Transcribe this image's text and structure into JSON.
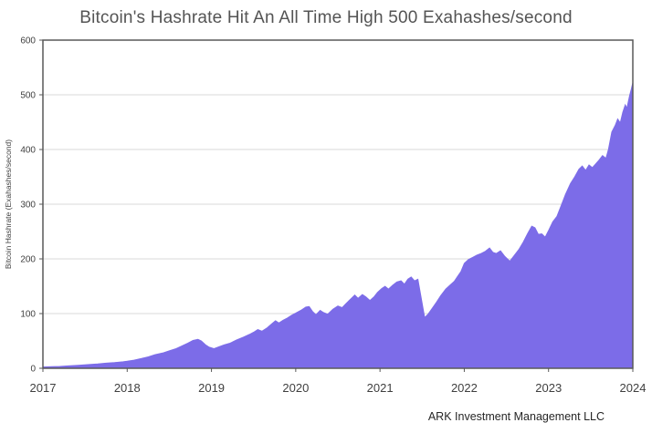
{
  "chart_data": {
    "type": "area",
    "title": "Bitcoin's Hashrate Hit An All Time High 500 Exahashes/second",
    "xlabel": "",
    "ylabel": "Bitcoin Hashrate (Exahashes/second)",
    "attribution": "ARK Investment Management LLC",
    "x_range": [
      2017,
      2024
    ],
    "ylim": [
      0,
      600
    ],
    "yticks": [
      0,
      100,
      200,
      300,
      400,
      500,
      600
    ],
    "xticks": [
      2017,
      2018,
      2019,
      2020,
      2021,
      2022,
      2023,
      2024
    ],
    "grid": "horizontal",
    "legend": "none",
    "colors": {
      "area": "#7c6ce8",
      "border": "#595959",
      "grid": "#d9d9d9",
      "tick_text": "#3f3f3f"
    },
    "series": [
      {
        "name": "Bitcoin Hashrate (Exahashes/second)",
        "points": [
          [
            2017.0,
            2.5
          ],
          [
            2017.1,
            3
          ],
          [
            2017.2,
            3.5
          ],
          [
            2017.3,
            4.5
          ],
          [
            2017.42,
            5.5
          ],
          [
            2017.55,
            7
          ],
          [
            2017.65,
            8
          ],
          [
            2017.75,
            9.5
          ],
          [
            2017.85,
            10.5
          ],
          [
            2017.95,
            12
          ],
          [
            2018.0,
            13
          ],
          [
            2018.08,
            15
          ],
          [
            2018.17,
            18
          ],
          [
            2018.25,
            21
          ],
          [
            2018.33,
            25
          ],
          [
            2018.42,
            28
          ],
          [
            2018.5,
            32
          ],
          [
            2018.58,
            36
          ],
          [
            2018.65,
            41
          ],
          [
            2018.72,
            46
          ],
          [
            2018.78,
            51
          ],
          [
            2018.84,
            53
          ],
          [
            2018.88,
            50
          ],
          [
            2018.93,
            43
          ],
          [
            2018.97,
            39
          ],
          [
            2019.03,
            36
          ],
          [
            2019.08,
            39
          ],
          [
            2019.15,
            43
          ],
          [
            2019.22,
            46
          ],
          [
            2019.3,
            52
          ],
          [
            2019.38,
            57
          ],
          [
            2019.45,
            62
          ],
          [
            2019.5,
            66
          ],
          [
            2019.55,
            71
          ],
          [
            2019.6,
            68
          ],
          [
            2019.66,
            74
          ],
          [
            2019.72,
            82
          ],
          [
            2019.76,
            87
          ],
          [
            2019.8,
            83
          ],
          [
            2019.85,
            88
          ],
          [
            2019.9,
            92
          ],
          [
            2019.95,
            97
          ],
          [
            2020.0,
            101
          ],
          [
            2020.06,
            106
          ],
          [
            2020.12,
            112
          ],
          [
            2020.16,
            113
          ],
          [
            2020.2,
            104
          ],
          [
            2020.24,
            98
          ],
          [
            2020.29,
            106
          ],
          [
            2020.33,
            102
          ],
          [
            2020.38,
            99
          ],
          [
            2020.44,
            108
          ],
          [
            2020.5,
            114
          ],
          [
            2020.55,
            111
          ],
          [
            2020.6,
            119
          ],
          [
            2020.66,
            128
          ],
          [
            2020.7,
            134
          ],
          [
            2020.74,
            128
          ],
          [
            2020.79,
            135
          ],
          [
            2020.83,
            131
          ],
          [
            2020.88,
            124
          ],
          [
            2020.93,
            131
          ],
          [
            2020.97,
            139
          ],
          [
            2021.02,
            146
          ],
          [
            2021.06,
            150
          ],
          [
            2021.1,
            145
          ],
          [
            2021.15,
            152
          ],
          [
            2021.2,
            158
          ],
          [
            2021.25,
            160
          ],
          [
            2021.29,
            154
          ],
          [
            2021.33,
            163
          ],
          [
            2021.37,
            167
          ],
          [
            2021.41,
            160
          ],
          [
            2021.45,
            163
          ],
          [
            2021.49,
            128
          ],
          [
            2021.53,
            93
          ],
          [
            2021.57,
            99
          ],
          [
            2021.62,
            110
          ],
          [
            2021.67,
            121
          ],
          [
            2021.72,
            133
          ],
          [
            2021.78,
            145
          ],
          [
            2021.83,
            152
          ],
          [
            2021.88,
            159
          ],
          [
            2021.92,
            168
          ],
          [
            2021.96,
            177
          ],
          [
            2022.0,
            192
          ],
          [
            2022.05,
            199
          ],
          [
            2022.1,
            203
          ],
          [
            2022.15,
            207
          ],
          [
            2022.2,
            210
          ],
          [
            2022.25,
            214
          ],
          [
            2022.3,
            220
          ],
          [
            2022.34,
            212
          ],
          [
            2022.38,
            210
          ],
          [
            2022.43,
            215
          ],
          [
            2022.48,
            205
          ],
          [
            2022.54,
            196
          ],
          [
            2022.58,
            204
          ],
          [
            2022.65,
            218
          ],
          [
            2022.7,
            231
          ],
          [
            2022.75,
            246
          ],
          [
            2022.8,
            260
          ],
          [
            2022.84,
            257
          ],
          [
            2022.88,
            245
          ],
          [
            2022.92,
            246
          ],
          [
            2022.96,
            240
          ],
          [
            2023.0,
            252
          ],
          [
            2023.05,
            268
          ],
          [
            2023.1,
            278
          ],
          [
            2023.15,
            298
          ],
          [
            2023.2,
            318
          ],
          [
            2023.26,
            338
          ],
          [
            2023.31,
            350
          ],
          [
            2023.36,
            364
          ],
          [
            2023.4,
            370
          ],
          [
            2023.44,
            362
          ],
          [
            2023.48,
            372
          ],
          [
            2023.52,
            367
          ],
          [
            2023.56,
            374
          ],
          [
            2023.6,
            381
          ],
          [
            2023.64,
            389
          ],
          [
            2023.68,
            384
          ],
          [
            2023.71,
            400
          ],
          [
            2023.75,
            432
          ],
          [
            2023.79,
            444
          ],
          [
            2023.82,
            456
          ],
          [
            2023.85,
            449
          ],
          [
            2023.88,
            468
          ],
          [
            2023.91,
            482
          ],
          [
            2023.93,
            476
          ],
          [
            2023.96,
            498
          ],
          [
            2023.98,
            510
          ],
          [
            2024.0,
            523
          ]
        ]
      }
    ]
  }
}
